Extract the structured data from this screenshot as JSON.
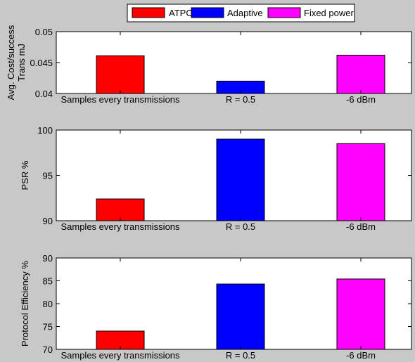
{
  "legend": [
    {
      "label": "ATPC",
      "color": "#ff0000"
    },
    {
      "label": "Adaptive",
      "color": "#0000ff"
    },
    {
      "label": "Fixed power",
      "color": "#ff00ff"
    }
  ],
  "chart_data": [
    {
      "type": "bar",
      "categories": [
        "Samples every transmissions",
        "R = 0.5",
        "-6 dBm"
      ],
      "series": [
        {
          "values": [
            0.0461,
            0.042,
            0.0462
          ]
        }
      ],
      "colors": [
        "#ff0000",
        "#0000ff",
        "#ff00ff"
      ],
      "ylabel": [
        "Avg. Cost/success",
        "Trans mJ"
      ],
      "ylim": [
        0.04,
        0.05
      ],
      "yticks": [
        "0.04",
        "0.045",
        "0.05"
      ],
      "grid": false
    },
    {
      "type": "bar",
      "categories": [
        "Samples every transmissions",
        "R = 0.5",
        "-6 dBm"
      ],
      "series": [
        {
          "values": [
            92.4,
            99.0,
            98.5
          ]
        }
      ],
      "colors": [
        "#ff0000",
        "#0000ff",
        "#ff00ff"
      ],
      "ylabel": [
        "PSR %"
      ],
      "ylim": [
        90,
        100
      ],
      "yticks": [
        "90",
        "95",
        "100"
      ],
      "grid": false
    },
    {
      "type": "bar",
      "categories": [
        "Samples every transmissions",
        "R = 0.5",
        "-6 dBm"
      ],
      "series": [
        {
          "values": [
            74.0,
            84.3,
            85.4
          ]
        }
      ],
      "colors": [
        "#ff0000",
        "#0000ff",
        "#ff00ff"
      ],
      "ylabel": [
        "Protocol Efficiency %"
      ],
      "ylim": [
        70,
        90
      ],
      "yticks": [
        "70",
        "75",
        "80",
        "85",
        "90"
      ],
      "grid": false
    }
  ]
}
